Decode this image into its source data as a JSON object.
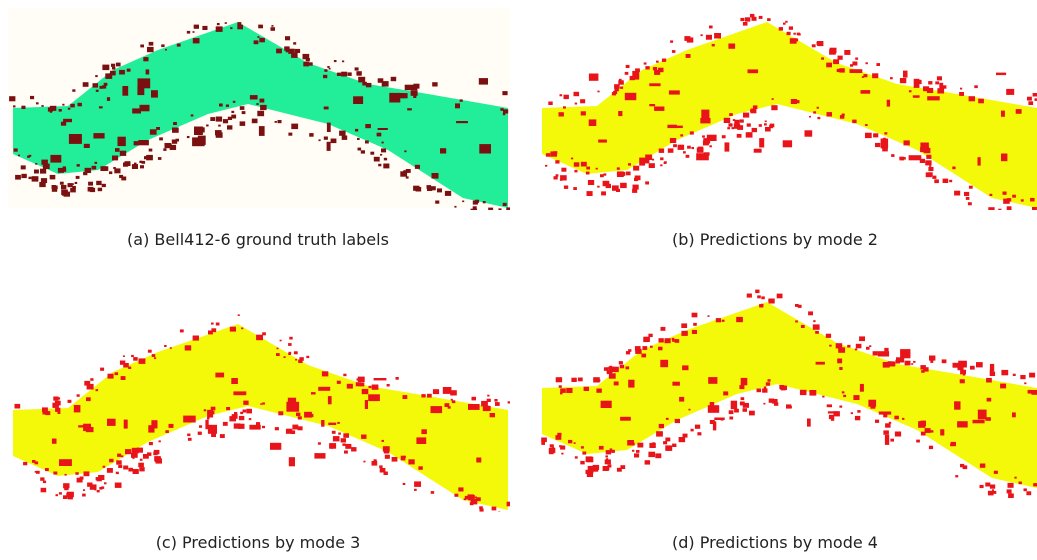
{
  "panels": [
    {
      "caption": "(a) Bell412-6 ground truth labels"
    },
    {
      "caption": "(b) Predictions by mode 2"
    },
    {
      "caption": "(c) Predictions by mode 3"
    },
    {
      "caption": "(d) Predictions by mode 4"
    }
  ]
}
